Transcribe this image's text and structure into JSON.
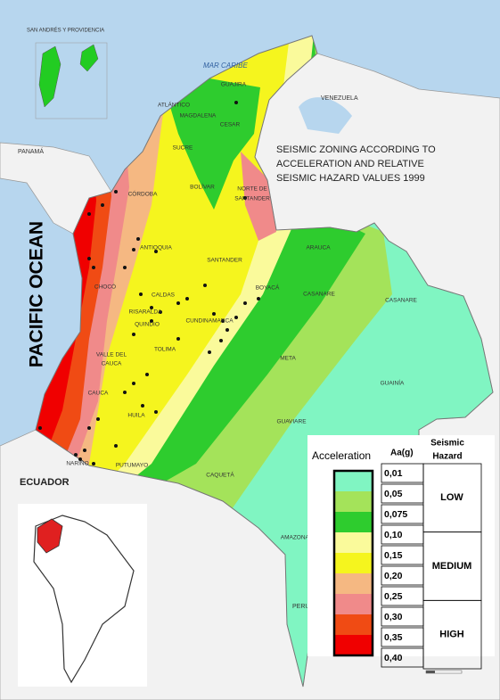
{
  "title_lines": [
    "SEISMIC ZONING ACCORDING TO",
    "ACCELERATION AND RELATIVE",
    "SEISMIC HAZARD VALUES 1999"
  ],
  "ocean": "PACIFIC OCEAN",
  "sea": "MAR CARIBE",
  "islands": "SAN ANDRÉS Y PROVIDENCIA",
  "countries": {
    "panama": "PANAMÁ",
    "venezuela": "VENEZUELA",
    "ecuador": "ECUADOR",
    "peru": "PERU"
  },
  "departments": [
    "GUAJIRA",
    "ATLÁNTICO",
    "MAGDALENA",
    "CESAR",
    "SUCRE",
    "CÓRDOBA",
    "BOLÍVAR",
    "NORTE DE",
    "SANTANDER",
    "ARAUCA",
    "ANTIOQUIA",
    "SANTANDER",
    "CHOCÓ",
    "CALDAS",
    "BOYACÁ",
    "CASANARE",
    "RISARALDA",
    "QUINDIO",
    "CUNDINAMARCA",
    "TOLIMA",
    "VALLE DEL",
    "CAUCA",
    "META",
    "GUAINÍA",
    "CAUCA",
    "HUILA",
    "GUAVIARE",
    "NARIÑO",
    "PUTUMAYO",
    "CAQUETÁ",
    "AMAZONAS",
    "CASANARE"
  ],
  "legend": {
    "acceleration": "Acceleration",
    "unit": "Aa(g)",
    "hazard_title": [
      "Seismic",
      "Hazard"
    ],
    "values": [
      "0,01",
      "0,05",
      "0,075",
      "0,10",
      "0,15",
      "0,20",
      "0,25",
      "0,30",
      "0,35",
      "0,40"
    ],
    "colors": [
      "#80f5c2",
      "#a4e35a",
      "#2ecc2e",
      "#fafa9b",
      "#f5f51e",
      "#f5b882",
      "#f08a8a",
      "#f04b14",
      "#f00000"
    ],
    "hazard_levels": [
      "LOW",
      "MEDIUM",
      "HIGH"
    ]
  }
}
